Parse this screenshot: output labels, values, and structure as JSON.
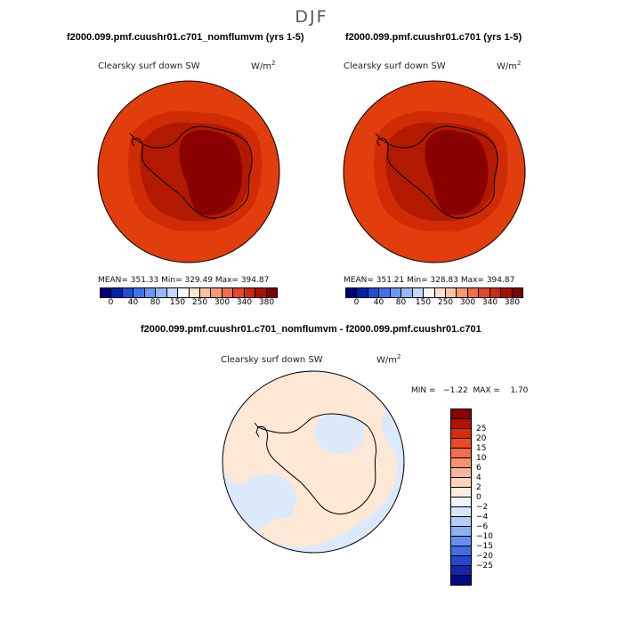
{
  "season": "DJF",
  "panel_left": {
    "case_title": "f2000.099.pmf.cuushr01.c701_nomflumvm (yrs 1-5)",
    "field_label": "Clearsky surf down SW",
    "units_base": "W/m",
    "units_exp": "2",
    "stats": {
      "mean": "351.33",
      "min": "329.49",
      "max": "394.87"
    },
    "stats_text": "MEAN= 351.33   Min= 329.49   Max= 394.87"
  },
  "panel_right": {
    "case_title": "f2000.099.pmf.cuushr01.c701 (yrs 1-5)",
    "field_label": "Clearsky surf down SW",
    "units_base": "W/m",
    "units_exp": "2",
    "stats": {
      "mean": "351.21",
      "min": "328.83",
      "max": "394.87"
    },
    "stats_text": "MEAN= 351.21   Min= 328.83   Max= 394.87"
  },
  "panel_diff": {
    "case_title": "f2000.099.pmf.cuushr01.c701_nomflumvm - f2000.099.pmf.cuushr01.c701",
    "field_label": "Clearsky surf down SW",
    "units_base": "W/m",
    "units_exp": "2",
    "stats": {
      "min": "-1.22",
      "max": "1.70"
    },
    "stats_text": "MIN =   −1.22  MAX =    1.70"
  },
  "abs_colorbar": {
    "colors": [
      "#00007f",
      "#0022aa",
      "#1e4fd6",
      "#3f73ee",
      "#6a96f4",
      "#97b7f7",
      "#c4d8fb",
      "#f3f6fd",
      "#fde2cc",
      "#fbc3a1",
      "#f79a74",
      "#ef6f4a",
      "#e2482a",
      "#cc2a12",
      "#a81100",
      "#7e0000"
    ],
    "tick_labels": [
      "0",
      "40",
      "80",
      "150",
      "250",
      "300",
      "340",
      "380"
    ]
  },
  "diff_colorbar": {
    "colors": [
      "#8b0000",
      "#b31200",
      "#d62d0e",
      "#ec4a22",
      "#f56d48",
      "#f8926e",
      "#fab594",
      "#fcd5be",
      "#fdebe0",
      "#f0f4fc",
      "#d7e5fb",
      "#b3ccf8",
      "#8db0f3",
      "#6690ec",
      "#406de1",
      "#2249cd",
      "#1127a8",
      "#000a80"
    ],
    "tick_labels": [
      "25",
      "20",
      "15",
      "10",
      "6",
      "4",
      "2",
      "0",
      "−2",
      "−4",
      "−6",
      "−10",
      "−15",
      "−20",
      "−25"
    ]
  },
  "map_colors": {
    "outer": "#e23d0c",
    "band": "#cf2c05",
    "inner": "#b21a00",
    "core": "#8a0000",
    "diff_pos": "#fde8d6",
    "diff_neg": "#dce9fb",
    "coast": "#000000"
  }
}
